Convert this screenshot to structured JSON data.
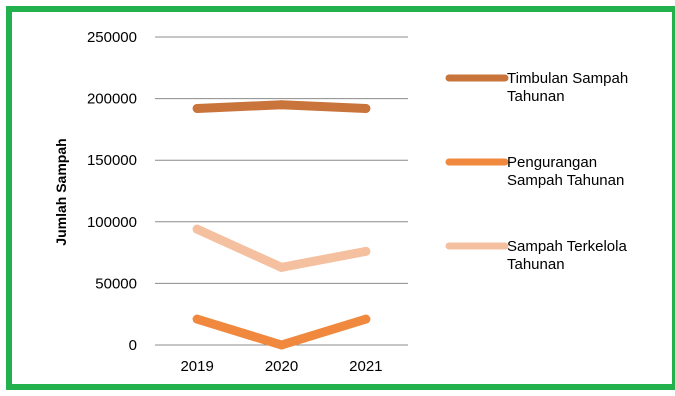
{
  "colors": {
    "border": "#22b14c",
    "grid": "#8c8c8c",
    "background": "#ffffff"
  },
  "chart_data": {
    "type": "line",
    "title": "",
    "xlabel": "",
    "ylabel": "Jumlah Sampah",
    "categories": [
      "2019",
      "2020",
      "2021"
    ],
    "ylim": [
      0,
      250000
    ],
    "yticks": [
      "250000",
      "200000",
      "150000",
      "100000",
      "50000",
      "0"
    ],
    "grid": true,
    "legend_position": "right",
    "series": [
      {
        "name": "Timbulan Sampah Tahunan",
        "name_lines": [
          "Timbulan Sampah",
          "Tahunan"
        ],
        "color": "#c8743a",
        "values": [
          192000,
          195000,
          192000
        ]
      },
      {
        "name": "Pengurangan Sampah Tahunan",
        "name_lines": [
          "Pengurangan",
          "Sampah Tahunan"
        ],
        "color": "#f0883e",
        "values": [
          21000,
          0,
          21000
        ]
      },
      {
        "name": "Sampah Terkelola Tahunan",
        "name_lines": [
          "Sampah Terkelola",
          "Tahunan"
        ],
        "color": "#f5c0a0",
        "values": [
          94000,
          63000,
          76000
        ]
      }
    ]
  }
}
